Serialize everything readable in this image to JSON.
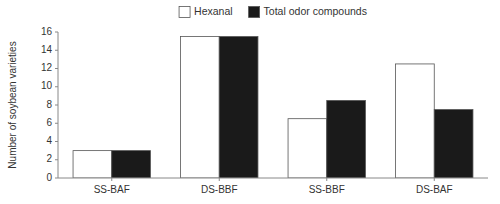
{
  "chart_data": {
    "type": "bar",
    "y_label": "Number of soybean varieties",
    "categories": [
      "SS-BAF",
      "DS-BBF",
      "SS-BBF",
      "DS-BAF"
    ],
    "series": [
      {
        "name": "Hexanal",
        "color": "#ffffff",
        "values": [
          3,
          15.5,
          6.5,
          12.5
        ]
      },
      {
        "name": "Total odor compounds",
        "color": "#1a1a1a",
        "values": [
          3,
          15.5,
          8.5,
          7.5
        ]
      }
    ],
    "ylim": [
      0,
      16
    ],
    "yticks": [
      0,
      2,
      4,
      6,
      8,
      10,
      12,
      14,
      16
    ],
    "grid": false,
    "legend": "top"
  }
}
